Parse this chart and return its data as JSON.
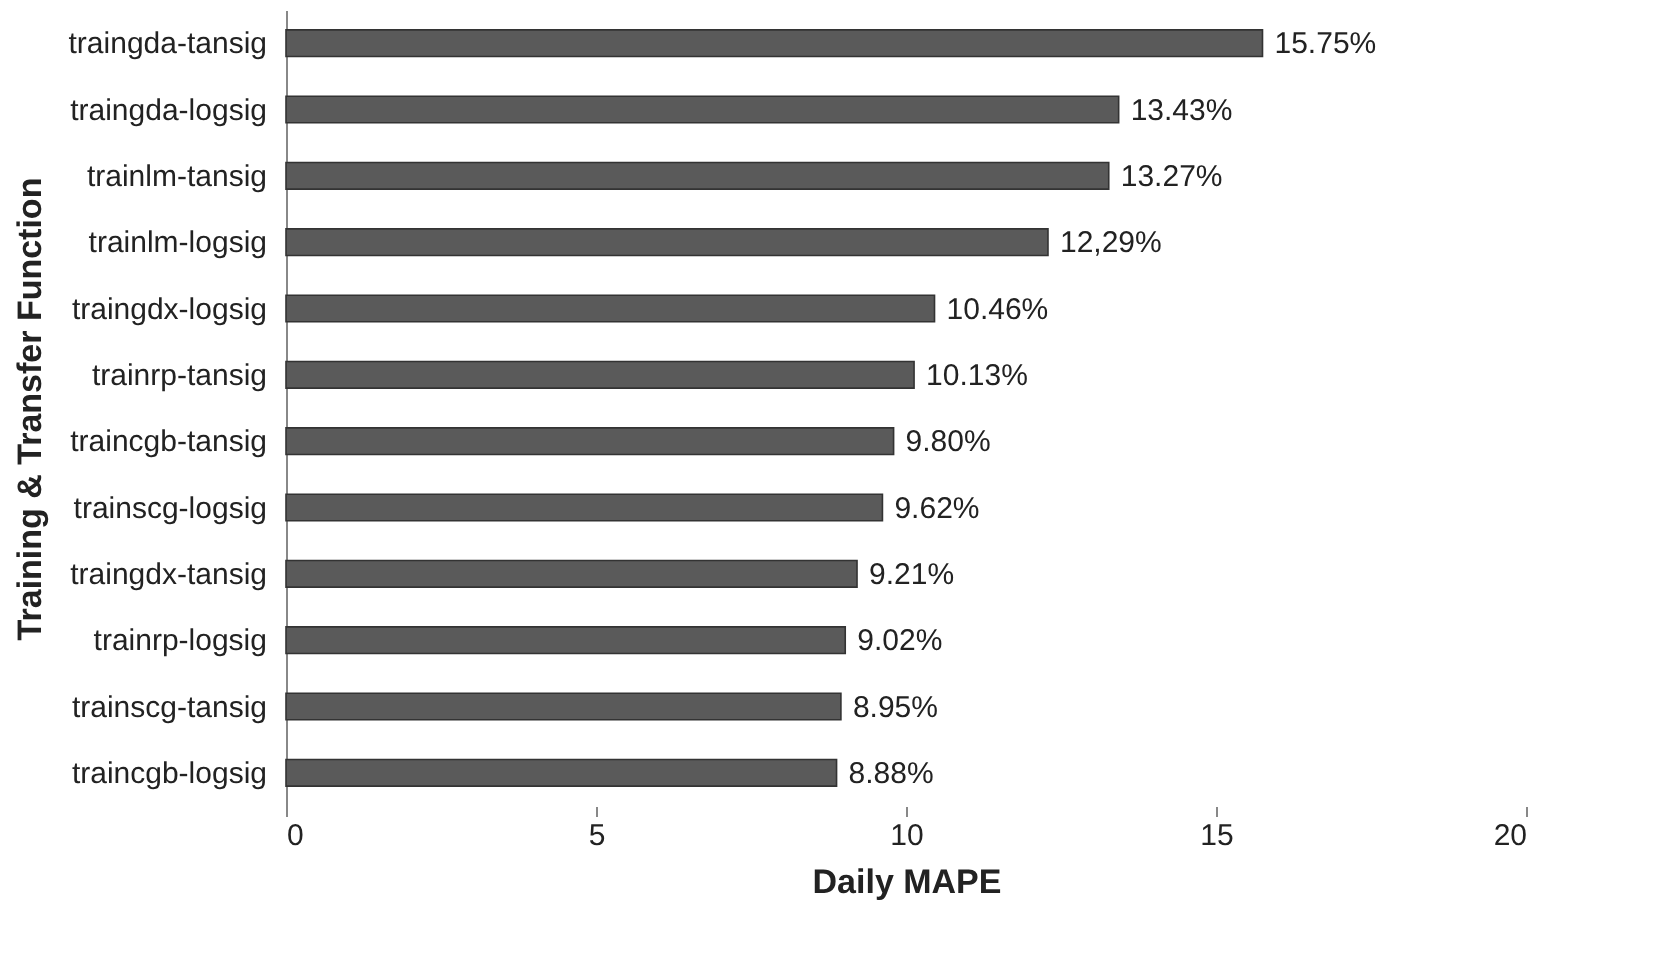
{
  "chart_data": {
    "type": "bar",
    "orientation": "horizontal",
    "xlabel": "Daily MAPE",
    "ylabel": "Training & Transfer Function",
    "categories": [
      "traingda-tansig",
      "traingda-logsig",
      "trainlm-tansig",
      "trainlm-logsig",
      "traingdx-logsig",
      "trainrp-tansig",
      "traincgb-tansig",
      "trainscg-logsig",
      "traingdx-tansig",
      "trainrp-logsig",
      "trainscg-tansig",
      "traincgb-logsig"
    ],
    "values": [
      15.75,
      13.43,
      13.27,
      12.29,
      10.46,
      10.13,
      9.8,
      9.62,
      9.21,
      9.02,
      8.95,
      8.88
    ],
    "value_labels": [
      "15.75%",
      "13.43%",
      "13.27%",
      "12,29%",
      "10.46%",
      "10.13%",
      "9.80%",
      "9.62%",
      "9.21%",
      "9.02%",
      "8.95%",
      "8.88%"
    ],
    "color": "#5a5a5a",
    "xlim": [
      0,
      20
    ],
    "xticks": [
      0,
      5,
      10,
      15,
      20
    ],
    "grid": false
  }
}
